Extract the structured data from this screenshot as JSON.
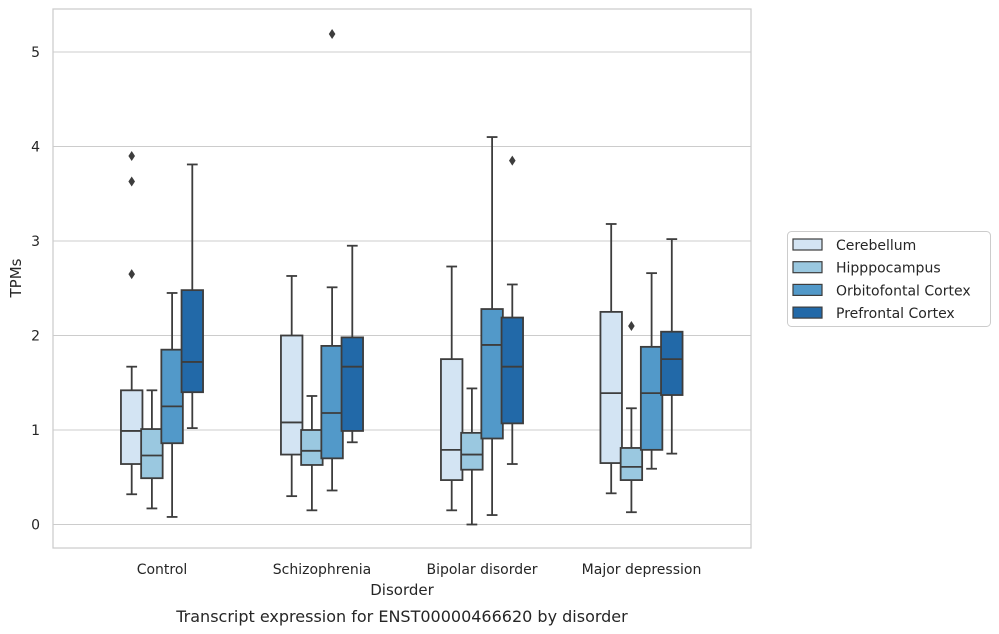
{
  "chart_data": {
    "type": "boxplot",
    "title": "Transcript expression for ENST00000466620 by disorder",
    "xlabel": "Disorder",
    "ylabel": "TPMs",
    "ylim": [
      -0.25,
      5.45
    ],
    "yticks": [
      0,
      1,
      2,
      3,
      4,
      5
    ],
    "grid": true,
    "legend_position": "right",
    "categories": [
      "Control",
      "Schizophrenia",
      "Bipolar disorder",
      "Major depression"
    ],
    "series": [
      {
        "name": "Cerebellum",
        "color": "#d3e4f3",
        "boxes": [
          {
            "whislo": 0.32,
            "q1": 0.64,
            "med": 0.99,
            "q3": 1.42,
            "whishi": 1.67,
            "fliers": [
              2.65,
              3.63,
              3.9
            ]
          },
          {
            "whislo": 0.3,
            "q1": 0.74,
            "med": 1.08,
            "q3": 2.0,
            "whishi": 2.63,
            "fliers": []
          },
          {
            "whislo": 0.15,
            "q1": 0.47,
            "med": 0.79,
            "q3": 1.75,
            "whishi": 2.73,
            "fliers": []
          },
          {
            "whislo": 0.33,
            "q1": 0.65,
            "med": 1.39,
            "q3": 2.25,
            "whishi": 3.18,
            "fliers": []
          }
        ]
      },
      {
        "name": "Hipppocampus",
        "color": "#9ac8e0",
        "boxes": [
          {
            "whislo": 0.17,
            "q1": 0.49,
            "med": 0.73,
            "q3": 1.01,
            "whishi": 1.42,
            "fliers": []
          },
          {
            "whislo": 0.15,
            "q1": 0.63,
            "med": 0.78,
            "q3": 1.0,
            "whishi": 1.36,
            "fliers": []
          },
          {
            "whislo": 0.0,
            "q1": 0.58,
            "med": 0.74,
            "q3": 0.97,
            "whishi": 1.44,
            "fliers": []
          },
          {
            "whislo": 0.13,
            "q1": 0.47,
            "med": 0.61,
            "q3": 0.81,
            "whishi": 1.23,
            "fliers": [
              2.1
            ]
          }
        ]
      },
      {
        "name": "Orbitofontal Cortex",
        "color": "#5299c9",
        "boxes": [
          {
            "whislo": 0.08,
            "q1": 0.86,
            "med": 1.25,
            "q3": 1.85,
            "whishi": 2.45,
            "fliers": []
          },
          {
            "whislo": 0.36,
            "q1": 0.7,
            "med": 1.18,
            "q3": 1.89,
            "whishi": 2.51,
            "fliers": [
              5.19
            ]
          },
          {
            "whislo": 0.1,
            "q1": 0.91,
            "med": 1.9,
            "q3": 2.28,
            "whishi": 4.1,
            "fliers": []
          },
          {
            "whislo": 0.59,
            "q1": 0.79,
            "med": 1.39,
            "q3": 1.88,
            "whishi": 2.66,
            "fliers": []
          }
        ]
      },
      {
        "name": "Prefrontal Cortex",
        "color": "#2269a8",
        "boxes": [
          {
            "whislo": 1.02,
            "q1": 1.4,
            "med": 1.72,
            "q3": 2.48,
            "whishi": 3.81,
            "fliers": []
          },
          {
            "whislo": 0.87,
            "q1": 0.99,
            "med": 1.67,
            "q3": 1.98,
            "whishi": 2.95,
            "fliers": []
          },
          {
            "whislo": 0.64,
            "q1": 1.07,
            "med": 1.67,
            "q3": 2.19,
            "whishi": 2.54,
            "fliers": [
              3.85
            ]
          },
          {
            "whislo": 0.75,
            "q1": 1.37,
            "med": 1.75,
            "q3": 2.04,
            "whishi": 3.02,
            "fliers": []
          }
        ]
      }
    ]
  }
}
